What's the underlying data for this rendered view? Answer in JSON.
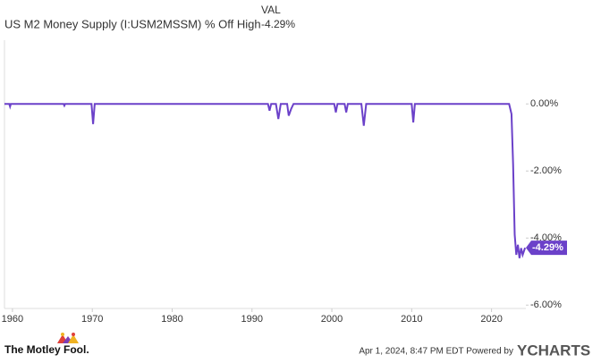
{
  "chart_data": {
    "type": "line",
    "title": "US M2 Money Supply (I:USM2MSSM) % Off High",
    "legend_header": "VAL",
    "x": [
      1959.0,
      1959.6,
      1959.7,
      1959.8,
      1966.4,
      1966.5,
      1966.6,
      1969.9,
      1970.1,
      1970.3,
      1992.0,
      1992.2,
      1992.4,
      1993.0,
      1993.3,
      1993.6,
      1994.4,
      1994.6,
      1994.9,
      1995.2,
      2000.3,
      2000.5,
      2000.7,
      2001.6,
      2001.8,
      2002.0,
      2003.7,
      2004.0,
      2004.3,
      2010.0,
      2010.2,
      2010.4,
      2022.2,
      2022.5,
      2022.7,
      2022.9,
      2023.1,
      2023.3,
      2023.5,
      2023.7,
      2023.9,
      2024.2
    ],
    "series": [
      {
        "name": "US M2 Money Supply (I:USM2MSSM) % Off High",
        "color": "#6b41c9",
        "values": [
          0,
          0,
          -0.08,
          0,
          0,
          -0.05,
          0,
          0,
          -0.6,
          0,
          0,
          -0.2,
          0,
          0,
          -0.45,
          0,
          0,
          -0.35,
          -0.15,
          0,
          0,
          -0.25,
          0,
          0,
          -0.25,
          0,
          0,
          -0.65,
          0,
          0,
          -0.55,
          0,
          0,
          -0.3,
          -1.8,
          -3.9,
          -4.5,
          -4.2,
          -4.6,
          -4.3,
          -4.5,
          -4.29
        ],
        "value_labels": [
          null,
          null,
          null,
          null,
          null,
          null,
          null,
          null,
          null,
          null,
          null,
          null,
          null,
          null,
          null,
          null,
          null,
          null,
          null,
          null,
          null,
          null,
          null,
          null,
          null,
          null,
          null,
          null,
          null,
          null,
          null,
          null,
          null,
          null,
          null,
          null,
          null,
          null,
          null,
          null,
          null,
          "-4.29%"
        ]
      }
    ],
    "xlim": [
      1959,
      2024.3
    ],
    "xticks": [
      1960,
      1970,
      1980,
      1990,
      2000,
      2010,
      2020
    ],
    "ylim": [
      -6.1,
      1.9
    ],
    "yticks": [
      {
        "value": 0,
        "label": "0.00%"
      },
      {
        "value": -2,
        "label": "-2.00%"
      },
      {
        "value": -4,
        "label": "-4.00%"
      },
      {
        "value": -6,
        "label": "-6.00%"
      }
    ]
  },
  "footer": {
    "brand": "The Motley Fool.",
    "timestamp": "Apr 1, 2024, 8:47 PM EDT Powered by",
    "provider": "YCHARTS"
  }
}
